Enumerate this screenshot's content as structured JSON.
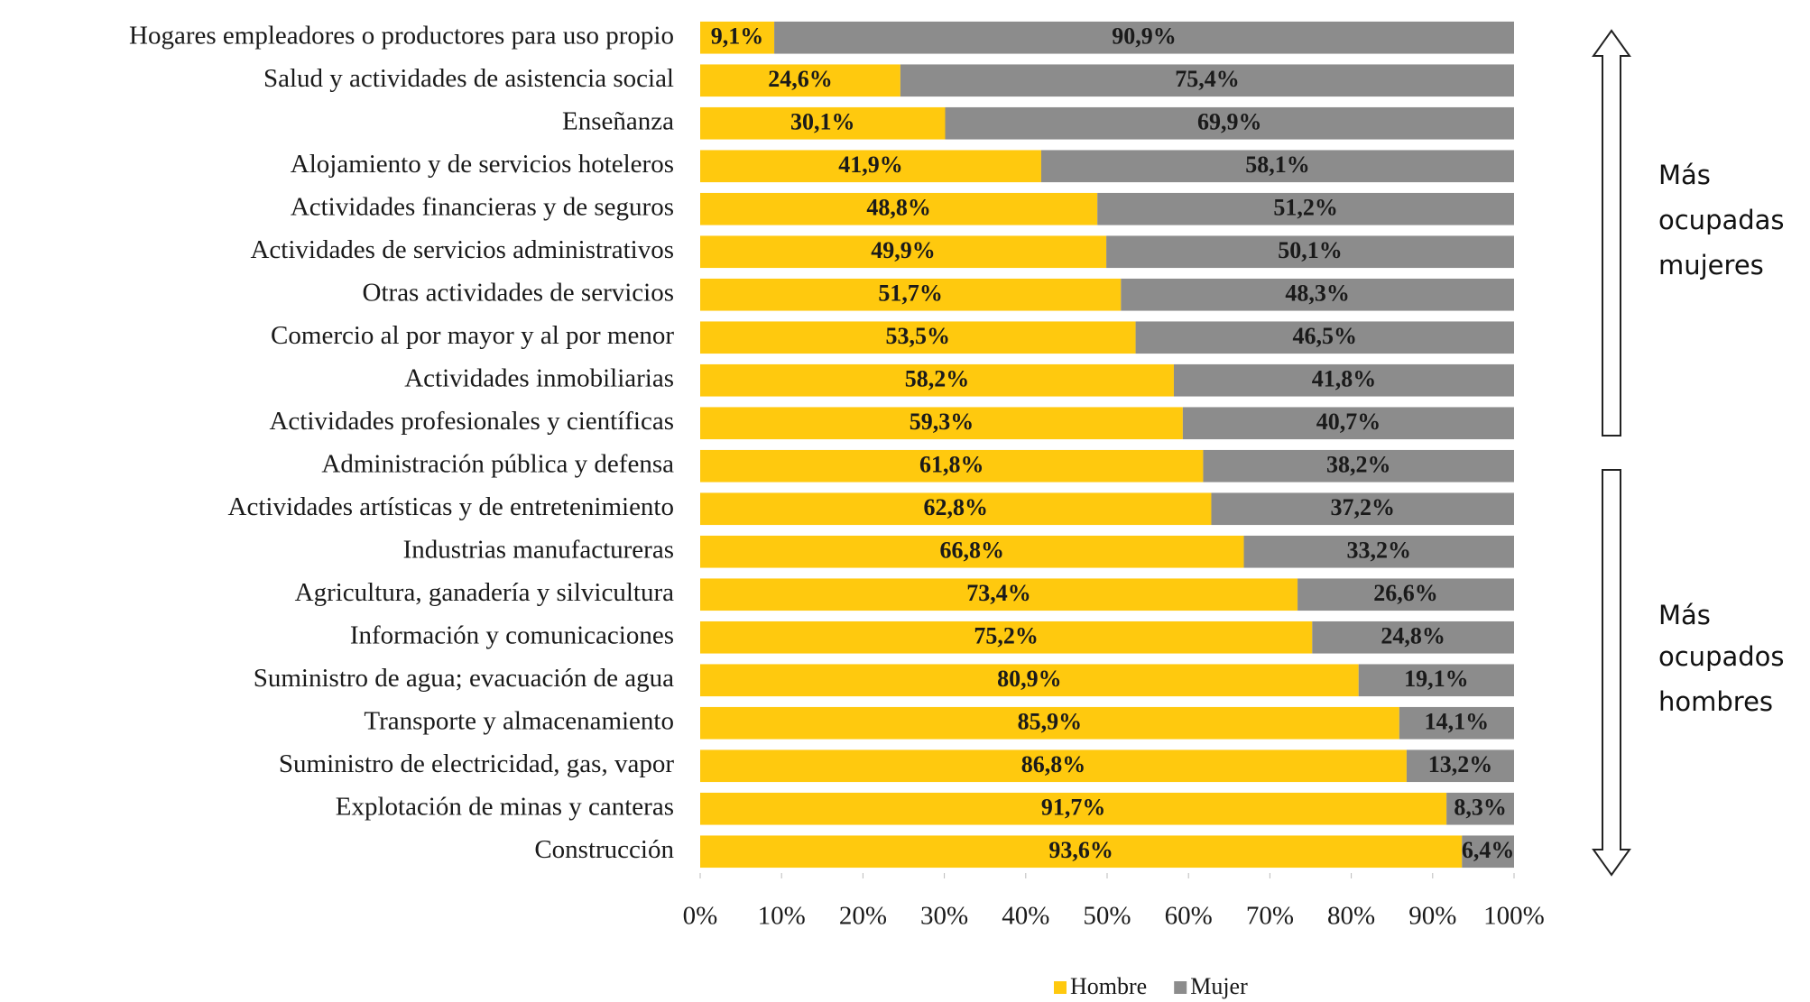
{
  "chart_data": {
    "type": "stacked-bar-horizontal",
    "categories": [
      "Hogares empleadores o productores para uso propio",
      "Salud y actividades de asistencia social",
      "Enseñanza",
      "Alojamiento y de servicios hoteleros",
      "Actividades financieras y de seguros",
      "Actividades de servicios administrativos",
      "Otras actividades de servicios",
      "Comercio al por mayor y al por menor",
      "Actividades inmobiliarias",
      "Actividades profesionales y científicas",
      "Administración pública y defensa",
      "Actividades artísticas y de entretenimiento",
      "Industrias manufactureras",
      "Agricultura, ganadería y silvicultura",
      "Información y comunicaciones",
      "Suministro de agua; evacuación de agua",
      "Transporte y almacenamiento",
      "Suministro de electricidad, gas, vapor",
      "Explotación de minas y canteras",
      "Construcción"
    ],
    "series": [
      {
        "name": "Hombre",
        "color": "#ffc90e",
        "values": [
          9.1,
          24.6,
          30.1,
          41.9,
          48.8,
          49.9,
          51.7,
          53.5,
          58.2,
          59.3,
          61.8,
          62.8,
          66.8,
          73.4,
          75.2,
          80.9,
          85.9,
          86.8,
          91.7,
          93.6
        ],
        "value_labels": [
          "9,1%",
          "24,6%",
          "30,1%",
          "41,9%",
          "48,8%",
          "49,9%",
          "51,7%",
          "53,5%",
          "58,2%",
          "59,3%",
          "61,8%",
          "62,8%",
          "66,8%",
          "73,4%",
          "75,2%",
          "80,9%",
          "85,9%",
          "86,8%",
          "91,7%",
          "93,6%"
        ]
      },
      {
        "name": "Mujer",
        "color": "#8c8c8c",
        "values": [
          90.9,
          75.4,
          69.9,
          58.1,
          51.2,
          50.1,
          48.3,
          46.5,
          41.8,
          40.7,
          38.2,
          37.2,
          33.2,
          26.6,
          24.8,
          19.1,
          14.1,
          13.2,
          8.3,
          6.4
        ],
        "value_labels": [
          "90,9%",
          "75,4%",
          "69,9%",
          "58,1%",
          "51,2%",
          "50,1%",
          "48,3%",
          "46,5%",
          "41,8%",
          "40,7%",
          "38,2%",
          "37,2%",
          "33,2%",
          "26,6%",
          "24,8%",
          "19,1%",
          "14,1%",
          "13,2%",
          "8,3%",
          "6,4%"
        ]
      }
    ],
    "xlim": [
      0,
      100
    ],
    "xticks": [
      {
        "value": 0,
        "label": "0%"
      },
      {
        "value": 10,
        "label": "10%"
      },
      {
        "value": 20,
        "label": "20%"
      },
      {
        "value": 30,
        "label": "30%"
      },
      {
        "value": 40,
        "label": "40%"
      },
      {
        "value": 50,
        "label": "50%"
      },
      {
        "value": 60,
        "label": "60%"
      },
      {
        "value": 70,
        "label": "70%"
      },
      {
        "value": 80,
        "label": "80%"
      },
      {
        "value": 90,
        "label": "90%"
      },
      {
        "value": 100,
        "label": "100%"
      }
    ],
    "legend": "bottom",
    "annotations": [
      {
        "lines": [
          "Más",
          "ocupadas",
          "mujeres"
        ]
      },
      {
        "lines": [
          "Más",
          "ocupados",
          "hombres"
        ]
      }
    ]
  }
}
